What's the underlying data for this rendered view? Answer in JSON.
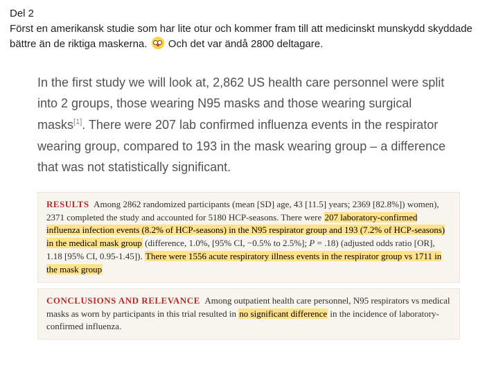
{
  "post": {
    "heading": "Del 2",
    "body_before_emoji": "Först en amerikansk studie som har lite otur och kommer fram till att medicinskt munskydd skyddade bättre än de riktiga maskerna. ",
    "body_after_emoji": " Och det var ändå 2800 deltagare."
  },
  "quote": {
    "text_before_ref": "In the first study we will look at, 2,862 US health care personnel were split into 2 groups, those wearing N95 masks and those wearing surgical masks",
    "ref": "[1]",
    "text_after_ref": ". There were 207 lab confirmed influenza events in the respirator wearing group, compared to 193 in the mask wearing group – a difference that was not statistically significant."
  },
  "results_box": {
    "label": "RESULTS",
    "seg1": "Among 2862 randomized participants (mean [SD] age, 43 [11.5] years; 2369 [82.8%]) women), 2371 completed the study and accounted for 5180 HCP-seasons. There were ",
    "hl1": "207 laboratory-confirmed influenza infection events (8.2% of HCP-seasons) in the N95 respirator group and 193 (7.2% of HCP-seasons) in the medical mask group",
    "seg2": " (difference, 1.0%, [95% CI, −0.5% to 2.5%]; ",
    "italic_p": "P",
    "seg2b": " = .18) (adjusted odds ratio [OR], 1.18 [95% CI, 0.95-1.45]). ",
    "hl2": "There were 1556 acute respiratory illness events in the respirator group vs 1711 in the mask group"
  },
  "conclusions_box": {
    "label": "CONCLUSIONS AND RELEVANCE",
    "seg1": "Among outpatient health care personnel, N95 respirators vs medical masks as worn by participants in this trial resulted in ",
    "hl1": "no significant difference",
    "seg2": " in the incidence of laboratory-confirmed influenza."
  },
  "colors": {
    "highlight": "#ffe28a",
    "label_red": "#b82a2a",
    "box_bg": "#f8f5ef",
    "box_border": "#eae4d9"
  }
}
